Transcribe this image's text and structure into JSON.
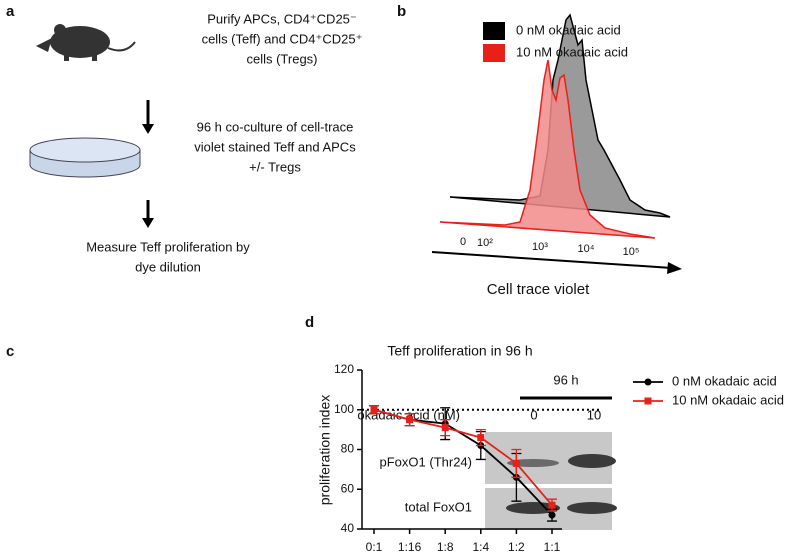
{
  "panel_a": {
    "label": "a",
    "step1": [
      "Purify APCs, CD4⁺CD25⁻",
      "cells (Teff) and CD4⁺CD25⁺",
      "cells (Tregs)"
    ],
    "step2": [
      "96 h co-culture of cell-trace",
      "violet stained Teff and APCs",
      "+/- Tregs"
    ],
    "step3": [
      "Measure Teff proliferation by",
      "dye dilution"
    ]
  },
  "panel_b": {
    "label": "b",
    "legend": [
      "0 nM okadaic acid",
      "10 nM okadaic acid"
    ],
    "x_tick_labels": [
      "0",
      "10²",
      "10³",
      "10⁴",
      "10⁵"
    ],
    "xlabel": "Cell trace violet"
  },
  "panel_c": {
    "label": "c",
    "time": "96 h",
    "condition": "okadaic acid (nM)",
    "doses": [
      "0",
      "10"
    ],
    "rows": [
      "pFoxO1 (Thr24)",
      "total FoxO1"
    ]
  },
  "panel_d_label": "d",
  "chart_data": {
    "type": "line",
    "title": "Teff proliferation in 96 h",
    "ylabel": "proliferation index",
    "categories": [
      "0:1",
      "1:16",
      "1:8",
      "1:4",
      "1:2",
      "1:1"
    ],
    "series": [
      {
        "name": "0 nM okadaic acid",
        "color": "#000000",
        "values": [
          100,
          95,
          93,
          82,
          66,
          47
        ],
        "errors": [
          2,
          3,
          8,
          7,
          12,
          3
        ]
      },
      {
        "name": "10 nM okadaic acid",
        "color": "#e8201a",
        "values": [
          100,
          95,
          91,
          86,
          73,
          52
        ],
        "errors": [
          2,
          3,
          4,
          4,
          7,
          3
        ]
      }
    ],
    "ylim": [
      40,
      120
    ],
    "yticks": [
      40,
      60,
      80,
      100,
      120
    ],
    "reference_line": 100
  }
}
